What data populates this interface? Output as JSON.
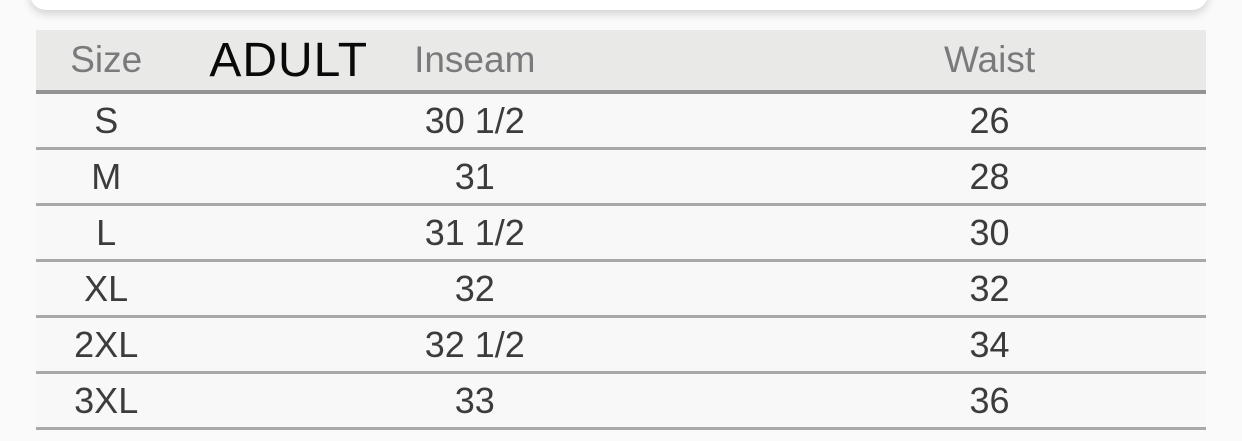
{
  "size_chart": {
    "overlay_label": "ADULT",
    "columns": [
      "Size",
      "Inseam",
      "Waist"
    ],
    "rows": [
      {
        "size": "S",
        "inseam": "30 1/2",
        "waist": "26"
      },
      {
        "size": "M",
        "inseam": "31",
        "waist": "28"
      },
      {
        "size": "L",
        "inseam": "31 1/2",
        "waist": "30"
      },
      {
        "size": "XL",
        "inseam": "32",
        "waist": "32"
      },
      {
        "size": "2XL",
        "inseam": "32 1/2",
        "waist": "34"
      },
      {
        "size": "3XL",
        "inseam": "33",
        "waist": "36"
      }
    ]
  },
  "colors": {
    "page_bg": "#fafafa",
    "card_bg": "#ffffff",
    "header_bg": "#e9e9e8",
    "row_bg": "#f8f8f8",
    "separator": "#a9a9a9",
    "header_border": "#949494",
    "header_text": "#7a7a7c",
    "cell_text": "#3c3c3c",
    "overlay_text": "#0a0a0a"
  }
}
